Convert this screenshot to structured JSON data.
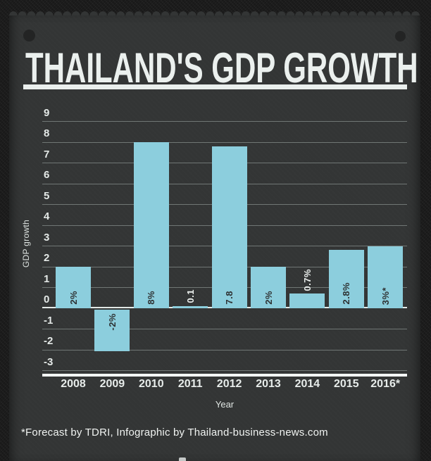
{
  "poster": {
    "title": "THAILAND'S GDP GROWTH",
    "footnote": "*Forecast by TDRI, Infographic by Thailand-business-news.com"
  },
  "chart_data": {
    "type": "bar",
    "title": "THAILAND'S GDP GROWTH",
    "xlabel": "Year",
    "ylabel": "GDP growth",
    "ylim": [
      -3,
      9
    ],
    "ytick_step": 1,
    "yticks": [
      9,
      8,
      7,
      6,
      5,
      4,
      3,
      2,
      1,
      0,
      -1,
      -2,
      -3
    ],
    "grid": true,
    "legend": false,
    "categories": [
      "2008",
      "2009",
      "2010",
      "2011",
      "2012",
      "2013",
      "2014",
      "2015",
      "2016*"
    ],
    "values": [
      2,
      -2,
      8,
      0.1,
      7.8,
      2,
      0.7,
      2.8,
      3
    ],
    "bar_value_labels": [
      "2%",
      "-2%",
      "8%",
      "0.1",
      "7.8",
      "2%",
      "0.7%",
      "2.8%",
      "3%*"
    ],
    "bar_color": "#8CCEDD"
  },
  "colors": {
    "background": "#191919",
    "panel": "#333535",
    "bar": "#8CCEDD",
    "title_text": "#EBF0EE",
    "gridline": "#7F8784",
    "zero_line": "#E2E9E6",
    "axis_line": "#F3F7F5",
    "tick_text": "#E4E9E7",
    "bar_label_dark": "#2E3233",
    "bar_label_light": "#EDF1EF"
  }
}
